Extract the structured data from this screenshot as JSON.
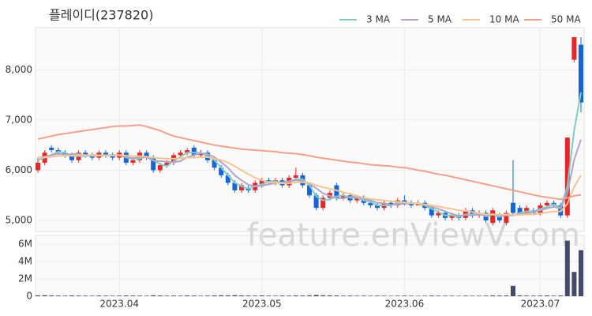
{
  "chart_data": [
    {
      "type": "candlestick",
      "title": "플레이디(237820)",
      "watermark": "feature.enViewV.com",
      "up_color": "#e8262a",
      "down_color": "#1565d8",
      "categories": [
        null,
        null,
        null,
        null,
        null,
        null,
        null,
        null,
        null,
        null,
        null,
        null,
        "2023.04",
        null,
        null,
        null,
        null,
        null,
        null,
        null,
        null,
        null,
        null,
        null,
        null,
        null,
        null,
        null,
        null,
        null,
        null,
        null,
        null,
        "2023.05",
        null,
        null,
        null,
        null,
        null,
        null,
        null,
        null,
        null,
        null,
        null,
        null,
        null,
        null,
        null,
        null,
        null,
        null,
        null,
        null,
        "2023.06",
        null,
        null,
        null,
        null,
        null,
        null,
        null,
        null,
        null,
        null,
        null,
        null,
        null,
        null,
        null,
        null,
        null,
        null,
        null,
        "2023.07",
        null,
        null,
        null,
        null,
        null,
        null
      ],
      "open": [
        6000,
        6150,
        6450,
        6400,
        6350,
        6300,
        6200,
        6350,
        6300,
        6250,
        6350,
        6300,
        6250,
        6350,
        6150,
        6200,
        6350,
        6250,
        6000,
        6100,
        6150,
        6300,
        6350,
        6450,
        6300,
        6350,
        6200,
        6050,
        5900,
        5750,
        5600,
        5650,
        5600,
        5700,
        5800,
        5750,
        5800,
        5700,
        5850,
        5900,
        5700,
        5500,
        5250,
        5450,
        5700,
        5450,
        5500,
        5400,
        5450,
        5350,
        5300,
        5250,
        5350,
        5300,
        5400,
        5350,
        5300,
        5350,
        5250,
        5100,
        5150,
        5050,
        5100,
        5050,
        5200,
        5100,
        5150,
        4950,
        5100,
        4950,
        5350,
        5250,
        5150,
        5200,
        5150,
        5300,
        5350,
        5300,
        5100,
        8200,
        8500
      ],
      "high": [
        6250,
        6400,
        6500,
        6450,
        6400,
        6350,
        6400,
        6400,
        6350,
        6400,
        6400,
        6350,
        6400,
        6400,
        6250,
        6400,
        6400,
        6300,
        6150,
        6200,
        6350,
        6400,
        6450,
        6500,
        6400,
        6400,
        6250,
        6100,
        5950,
        5800,
        5750,
        5700,
        5800,
        5850,
        5850,
        5850,
        5850,
        5900,
        6050,
        5950,
        5750,
        5550,
        5500,
        5600,
        5750,
        5550,
        5550,
        5500,
        5500,
        5400,
        5350,
        5400,
        5400,
        5450,
        5500,
        5400,
        5400,
        5400,
        5300,
        5200,
        5200,
        5150,
        5150,
        5250,
        5250,
        5200,
        5200,
        5250,
        5150,
        5200,
        6200,
        5300,
        5300,
        5250,
        5350,
        5400,
        5400,
        5350,
        6650,
        8650,
        8650
      ],
      "low": [
        5950,
        6100,
        6350,
        6300,
        6250,
        6150,
        6150,
        6250,
        6200,
        6200,
        6250,
        6200,
        6200,
        6100,
        6100,
        6150,
        6200,
        5950,
        5950,
        6050,
        6100,
        6250,
        6300,
        6250,
        6250,
        6150,
        6000,
        5850,
        5700,
        5550,
        5550,
        5550,
        5550,
        5650,
        5700,
        5700,
        5650,
        5650,
        5800,
        5650,
        5450,
        5200,
        5200,
        5400,
        5400,
        5400,
        5350,
        5350,
        5300,
        5250,
        5200,
        5200,
        5250,
        5250,
        5300,
        5250,
        5300,
        5200,
        5050,
        5050,
        5000,
        5000,
        5000,
        5000,
        5050,
        5050,
        4950,
        4900,
        4950,
        4900,
        5100,
        5100,
        5100,
        5100,
        5100,
        5250,
        5250,
        5050,
        5050,
        8150,
        7150
      ],
      "close": [
        6150,
        6350,
        6400,
        6350,
        6300,
        6200,
        6350,
        6300,
        6250,
        6350,
        6300,
        6250,
        6350,
        6150,
        6200,
        6350,
        6250,
        6000,
        6100,
        6150,
        6300,
        6350,
        6400,
        6300,
        6350,
        6200,
        6050,
        5900,
        5750,
        5600,
        5700,
        5600,
        5750,
        5800,
        5750,
        5800,
        5700,
        5850,
        5900,
        5700,
        5500,
        5250,
        5450,
        5550,
        5450,
        5500,
        5400,
        5450,
        5350,
        5300,
        5250,
        5350,
        5300,
        5400,
        5350,
        5300,
        5350,
        5250,
        5100,
        5150,
        5050,
        5100,
        5050,
        5200,
        5100,
        5150,
        5000,
        5200,
        5000,
        5150,
        5150,
        5150,
        5250,
        5150,
        5300,
        5350,
        5300,
        5100,
        6650,
        8650,
        7350
      ],
      "series": [
        {
          "name": "3 MA",
          "color": "#7fcdc4",
          "values": [
            6200,
            6250,
            6300,
            6370,
            6350,
            6280,
            6280,
            6280,
            6300,
            6300,
            6300,
            6300,
            6300,
            6250,
            6230,
            6230,
            6270,
            6200,
            6120,
            6080,
            6180,
            6270,
            6350,
            6350,
            6350,
            6280,
            6200,
            6050,
            5900,
            5750,
            5680,
            5630,
            5680,
            5720,
            5770,
            5780,
            5750,
            5780,
            5820,
            5820,
            5700,
            5480,
            5400,
            5420,
            5480,
            5500,
            5450,
            5450,
            5400,
            5370,
            5300,
            5300,
            5300,
            5350,
            5350,
            5350,
            5330,
            5300,
            5230,
            5170,
            5100,
            5100,
            5070,
            5120,
            5120,
            5150,
            5080,
            5120,
            5070,
            5120,
            5100,
            5150,
            5180,
            5180,
            5230,
            5270,
            5320,
            5250,
            5680,
            6800,
            7550
          ]
        },
        {
          "name": "5 MA",
          "color": "#b3a3c9",
          "values": [
            6250,
            6270,
            6300,
            6330,
            6310,
            6320,
            6320,
            6300,
            6280,
            6290,
            6290,
            6290,
            6300,
            6260,
            6240,
            6260,
            6260,
            6190,
            6180,
            6170,
            6160,
            6180,
            6260,
            6300,
            6340,
            6320,
            6260,
            6160,
            6050,
            5900,
            5800,
            5710,
            5680,
            5690,
            5720,
            5740,
            5760,
            5780,
            5800,
            5790,
            5730,
            5640,
            5540,
            5490,
            5440,
            5440,
            5470,
            5470,
            5430,
            5400,
            5350,
            5340,
            5310,
            5320,
            5330,
            5340,
            5340,
            5310,
            5270,
            5230,
            5180,
            5130,
            5090,
            5110,
            5100,
            5120,
            5100,
            5130,
            5090,
            5100,
            5100,
            5130,
            5140,
            5170,
            5200,
            5240,
            5270,
            5240,
            5540,
            6210,
            6610
          ]
        },
        {
          "name": "10 MA",
          "color": "#f5c58f",
          "values": [
            6250,
            6260,
            6270,
            6280,
            6290,
            6290,
            6300,
            6300,
            6300,
            6290,
            6290,
            6290,
            6300,
            6290,
            6280,
            6280,
            6270,
            6250,
            6240,
            6230,
            6230,
            6240,
            6250,
            6250,
            6260,
            6260,
            6230,
            6200,
            6150,
            6080,
            6000,
            5920,
            5850,
            5800,
            5760,
            5750,
            5740,
            5740,
            5760,
            5760,
            5750,
            5700,
            5660,
            5630,
            5600,
            5560,
            5530,
            5490,
            5450,
            5430,
            5410,
            5400,
            5380,
            5370,
            5360,
            5340,
            5340,
            5320,
            5300,
            5280,
            5250,
            5230,
            5200,
            5190,
            5170,
            5140,
            5120,
            5120,
            5110,
            5120,
            5110,
            5110,
            5120,
            5120,
            5140,
            5160,
            5180,
            5180,
            5330,
            5670,
            5900
          ]
        },
        {
          "name": "50 MA",
          "color": "#f4a08a",
          "values": [
            6620,
            6650,
            6680,
            6710,
            6730,
            6750,
            6770,
            6790,
            6810,
            6830,
            6850,
            6870,
            6880,
            6880,
            6890,
            6900,
            6870,
            6830,
            6790,
            6730,
            6680,
            6650,
            6620,
            6590,
            6560,
            6530,
            6500,
            6480,
            6460,
            6440,
            6420,
            6410,
            6400,
            6390,
            6380,
            6370,
            6350,
            6340,
            6330,
            6310,
            6290,
            6260,
            6240,
            6220,
            6200,
            6180,
            6160,
            6150,
            6130,
            6110,
            6100,
            6090,
            6080,
            6060,
            6050,
            6030,
            6000,
            5980,
            5950,
            5920,
            5900,
            5870,
            5840,
            5810,
            5780,
            5750,
            5720,
            5690,
            5660,
            5630,
            5600,
            5570,
            5540,
            5510,
            5480,
            5460,
            5440,
            5420,
            5450,
            5490,
            5510
          ]
        }
      ],
      "ylim": [
        4780,
        8840
      ],
      "yticks": [
        {
          "value": 5000,
          "label": "5,000"
        },
        {
          "value": 6000,
          "label": "6,000"
        },
        {
          "value": 7000,
          "label": "7,000"
        },
        {
          "value": 8000,
          "label": "8,000"
        }
      ],
      "grid": true
    },
    {
      "type": "bar",
      "color": "#454a6b",
      "values": [
        100000,
        120000,
        90000,
        80000,
        70000,
        90000,
        80000,
        70000,
        60000,
        80000,
        70000,
        60000,
        70000,
        90000,
        80000,
        70000,
        60000,
        110000,
        90000,
        70000,
        80000,
        70000,
        90000,
        80000,
        60000,
        70000,
        90000,
        110000,
        100000,
        120000,
        90000,
        80000,
        70000,
        90000,
        70000,
        60000,
        80000,
        70000,
        90000,
        80000,
        100000,
        150000,
        110000,
        100000,
        90000,
        70000,
        80000,
        60000,
        70000,
        60000,
        70000,
        60000,
        50000,
        60000,
        70000,
        60000,
        50000,
        60000,
        80000,
        70000,
        60000,
        60000,
        50000,
        70000,
        60000,
        60000,
        70000,
        90000,
        80000,
        90000,
        1200000,
        100000,
        80000,
        70000,
        80000,
        90000,
        70000,
        90000,
        6400000,
        2800000,
        5300000
      ],
      "ylim": [
        0,
        7000000
      ],
      "yticks": [
        0,
        {
          "value": 2000000,
          "label": "2M"
        },
        {
          "value": 4000000,
          "label": "4M"
        },
        {
          "value": 6000000,
          "label": "6M"
        }
      ],
      "grid": true
    }
  ]
}
